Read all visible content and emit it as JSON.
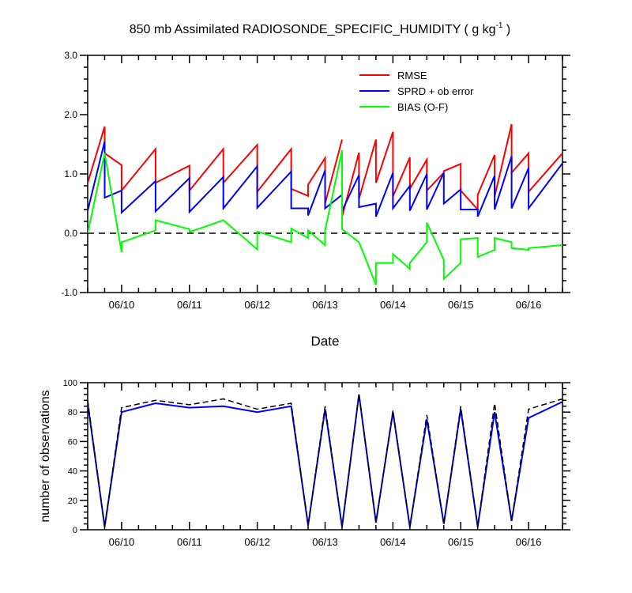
{
  "figure": {
    "title": "850 mb Assimilated RADIOSONDE_SPECIFIC_HUMIDITY ( g kg",
    "title_sup": "-1",
    "title_close": " )"
  },
  "chart_data": [
    {
      "type": "line",
      "xlabel": "Date",
      "ylabel": "",
      "xlim": [
        9.5,
        16.5
      ],
      "ylim": [
        -1.0,
        3.0
      ],
      "yticks": [
        -1.0,
        0.0,
        1.0,
        2.0,
        3.0
      ],
      "ytick_labels": [
        "-1.0",
        "0.0",
        "1.0",
        "2.0",
        "3.0"
      ],
      "xticks": [
        10,
        11,
        12,
        13,
        14,
        15,
        16
      ],
      "xtick_labels": [
        "06/10",
        "06/11",
        "06/12",
        "06/13",
        "06/14",
        "06/15",
        "06/16"
      ],
      "zero_line": true,
      "legend_position": "top-right",
      "series": [
        {
          "name": "RMSE",
          "color": "#ff0000",
          "segments": [
            [
              [
                9.5,
                0.85
              ],
              [
                9.75,
                1.8
              ],
              [
                9.75,
                1.35
              ],
              [
                10.0,
                1.15
              ],
              [
                10.0,
                0.72
              ],
              [
                10.5,
                1.42
              ],
              [
                10.5,
                0.85
              ],
              [
                11.0,
                1.14
              ],
              [
                11.0,
                0.72
              ],
              [
                11.5,
                1.42
              ],
              [
                11.5,
                0.85
              ],
              [
                12.0,
                1.49
              ],
              [
                12.0,
                0.7
              ],
              [
                12.5,
                1.42
              ],
              [
                12.5,
                0.75
              ],
              [
                12.75,
                0.63
              ],
              [
                12.75,
                0.82
              ],
              [
                13.0,
                1.27
              ],
              [
                13.0,
                0.5
              ],
              [
                13.25,
                1.58
              ]
            ],
            [
              [
                13.25,
                0.28
              ],
              [
                13.5,
                1.36
              ],
              [
                13.5,
                0.58
              ],
              [
                13.75,
                1.58
              ],
              [
                13.75,
                0.85
              ],
              [
                14.0,
                1.71
              ],
              [
                14.0,
                0.62
              ],
              [
                14.25,
                1.28
              ],
              [
                14.25,
                0.75
              ],
              [
                14.5,
                1.24
              ],
              [
                14.5,
                0.72
              ],
              [
                14.75,
                1.02
              ],
              [
                14.75,
                1.05
              ],
              [
                15.0,
                1.17
              ],
              [
                15.0,
                0.72
              ],
              [
                15.25,
                0.4
              ],
              [
                15.25,
                0.65
              ],
              [
                15.5,
                1.32
              ],
              [
                15.5,
                0.62
              ],
              [
                15.75,
                1.84
              ],
              [
                15.75,
                1.02
              ],
              [
                16.0,
                1.35
              ],
              [
                16.0,
                0.7
              ],
              [
                16.5,
                1.35
              ]
            ]
          ]
        },
        {
          "name": "SPRD + ob error",
          "color": "#0000ff",
          "segments": [
            [
              [
                9.5,
                0.38
              ],
              [
                9.75,
                1.55
              ],
              [
                9.75,
                0.6
              ],
              [
                10.0,
                0.72
              ],
              [
                10.0,
                0.35
              ],
              [
                10.5,
                0.88
              ],
              [
                10.5,
                0.37
              ],
              [
                11.0,
                0.93
              ],
              [
                11.0,
                0.36
              ],
              [
                11.5,
                0.95
              ],
              [
                11.5,
                0.42
              ],
              [
                12.0,
                1.13
              ],
              [
                12.0,
                0.43
              ],
              [
                12.5,
                1.04
              ],
              [
                12.5,
                0.42
              ],
              [
                12.75,
                0.42
              ],
              [
                12.75,
                0.3
              ],
              [
                13.0,
                1.06
              ],
              [
                13.0,
                0.42
              ],
              [
                13.25,
                0.65
              ]
            ],
            [
              [
                13.25,
                0.38
              ],
              [
                13.5,
                0.98
              ],
              [
                13.5,
                0.44
              ],
              [
                13.75,
                0.5
              ],
              [
                13.75,
                0.28
              ],
              [
                14.0,
                1.02
              ],
              [
                14.0,
                0.42
              ],
              [
                14.25,
                0.8
              ],
              [
                14.25,
                0.38
              ],
              [
                14.5,
                1.0
              ],
              [
                14.5,
                0.4
              ],
              [
                14.75,
                1.02
              ],
              [
                14.75,
                0.5
              ],
              [
                15.0,
                0.74
              ],
              [
                15.0,
                0.4
              ],
              [
                15.25,
                0.4
              ],
              [
                15.25,
                0.28
              ],
              [
                15.5,
                0.97
              ],
              [
                15.5,
                0.4
              ],
              [
                15.75,
                1.3
              ],
              [
                15.75,
                0.42
              ],
              [
                16.0,
                1.1
              ],
              [
                16.0,
                0.42
              ],
              [
                16.5,
                1.18
              ]
            ]
          ]
        },
        {
          "name": "BIAS (O-F)",
          "color": "#00ff00",
          "segments": [
            [
              [
                9.5,
                0.0
              ],
              [
                9.75,
                1.35
              ],
              [
                10.0,
                -0.32
              ],
              [
                10.0,
                -0.15
              ],
              [
                10.5,
                0.05
              ],
              [
                10.5,
                0.22
              ],
              [
                11.0,
                0.07
              ],
              [
                11.0,
                0.02
              ],
              [
                11.5,
                0.22
              ],
              [
                12.0,
                -0.27
              ],
              [
                12.0,
                0.03
              ],
              [
                12.5,
                -0.15
              ],
              [
                12.5,
                0.08
              ],
              [
                12.75,
                -0.08
              ],
              [
                12.75,
                0.05
              ],
              [
                13.0,
                -0.2
              ],
              [
                13.0,
                0.05
              ],
              [
                13.25,
                1.4
              ],
              [
                13.25,
                0.07
              ],
              [
                13.5,
                -0.15
              ],
              [
                13.75,
                -0.87
              ],
              [
                13.75,
                -0.5
              ],
              [
                14.0,
                -0.5
              ],
              [
                14.0,
                -0.35
              ],
              [
                14.25,
                -0.6
              ],
              [
                14.25,
                -0.5
              ],
              [
                14.5,
                -0.15
              ],
              [
                14.5,
                0.18
              ],
              [
                14.75,
                -0.45
              ],
              [
                14.75,
                -0.77
              ],
              [
                15.0,
                -0.5
              ],
              [
                15.0,
                -0.1
              ],
              [
                15.25,
                -0.08
              ],
              [
                15.25,
                -0.4
              ],
              [
                15.5,
                -0.28
              ],
              [
                15.5,
                -0.08
              ],
              [
                15.75,
                -0.15
              ],
              [
                15.75,
                -0.25
              ],
              [
                16.0,
                -0.28
              ],
              [
                16.0,
                -0.25
              ],
              [
                16.5,
                -0.2
              ]
            ]
          ]
        }
      ]
    },
    {
      "type": "line",
      "xlabel": "",
      "ylabel": "number of observations",
      "xlim": [
        9.5,
        16.5
      ],
      "ylim": [
        0,
        100
      ],
      "yticks": [
        0,
        20,
        40,
        60,
        80,
        100
      ],
      "ytick_labels": [
        "0",
        "20",
        "40",
        "60",
        "80",
        "100"
      ],
      "xticks": [
        10,
        11,
        12,
        13,
        14,
        15,
        16
      ],
      "xtick_labels": [
        "06/10",
        "06/11",
        "06/12",
        "06/13",
        "06/14",
        "06/15",
        "06/16"
      ],
      "series": [
        {
          "color": "#0000ff",
          "dash": "solid",
          "segments": [
            [
              [
                9.5,
                86
              ],
              [
                9.75,
                2
              ],
              [
                10.0,
                80
              ],
              [
                10.5,
                86
              ],
              [
                11.0,
                83
              ],
              [
                11.5,
                84
              ],
              [
                12.0,
                80
              ],
              [
                12.5,
                84
              ],
              [
                12.75,
                3
              ],
              [
                13.0,
                82
              ],
              [
                13.25,
                2
              ],
              [
                13.5,
                92
              ],
              [
                13.75,
                5
              ],
              [
                14.0,
                80
              ],
              [
                14.25,
                2
              ],
              [
                14.5,
                75
              ],
              [
                14.75,
                4
              ],
              [
                15.0,
                82
              ],
              [
                15.25,
                2
              ],
              [
                15.5,
                80
              ],
              [
                15.75,
                6
              ],
              [
                16.0,
                76
              ],
              [
                16.5,
                87
              ]
            ]
          ]
        },
        {
          "color": "#000000",
          "dash": "dashed",
          "segments": [
            [
              [
                9.5,
                88
              ],
              [
                9.75,
                2
              ],
              [
                10.0,
                83
              ],
              [
                10.5,
                88
              ],
              [
                11.0,
                85
              ],
              [
                11.5,
                89
              ],
              [
                12.0,
                82
              ],
              [
                12.5,
                86
              ],
              [
                12.75,
                3
              ],
              [
                13.0,
                84
              ],
              [
                13.25,
                2
              ],
              [
                13.5,
                92
              ],
              [
                13.75,
                5
              ],
              [
                14.0,
                81
              ],
              [
                14.25,
                2
              ],
              [
                14.5,
                78
              ],
              [
                14.75,
                4
              ],
              [
                15.0,
                84
              ],
              [
                15.25,
                2
              ],
              [
                15.5,
                86
              ],
              [
                15.75,
                6
              ],
              [
                16.0,
                82
              ],
              [
                16.5,
                89
              ]
            ]
          ]
        }
      ]
    }
  ]
}
